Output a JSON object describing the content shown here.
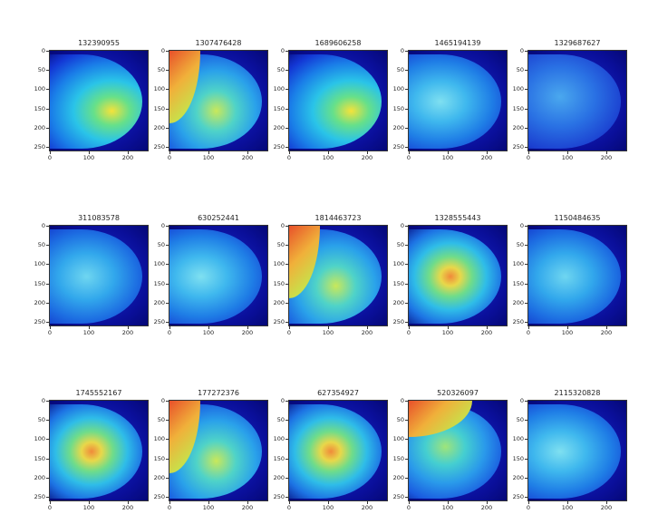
{
  "grid": {
    "panels": [
      {
        "title": "132390955",
        "style": "dense-right"
      },
      {
        "title": "1307476428",
        "style": "muscle-left"
      },
      {
        "title": "1689606258",
        "style": "dense-right"
      },
      {
        "title": "1465194139",
        "style": "fatty"
      },
      {
        "title": "1329687627",
        "style": "faint"
      },
      {
        "title": "311083578",
        "style": "fatty-left"
      },
      {
        "title": "630252441",
        "style": "fatty"
      },
      {
        "title": "1814463723",
        "style": "muscle-left"
      },
      {
        "title": "1328555443",
        "style": "dense-center"
      },
      {
        "title": "1150484635",
        "style": "fatty-left"
      },
      {
        "title": "1745552167",
        "style": "dense-center"
      },
      {
        "title": "177272376",
        "style": "muscle-left"
      },
      {
        "title": "627354927",
        "style": "dense-center"
      },
      {
        "title": "520326097",
        "style": "muscle-top"
      },
      {
        "title": "2115320828",
        "style": "fatty"
      }
    ],
    "y_ticks": [
      "0",
      "50",
      "100",
      "150",
      "200",
      "250"
    ],
    "x_ticks": [
      "0",
      "100",
      "200"
    ]
  }
}
